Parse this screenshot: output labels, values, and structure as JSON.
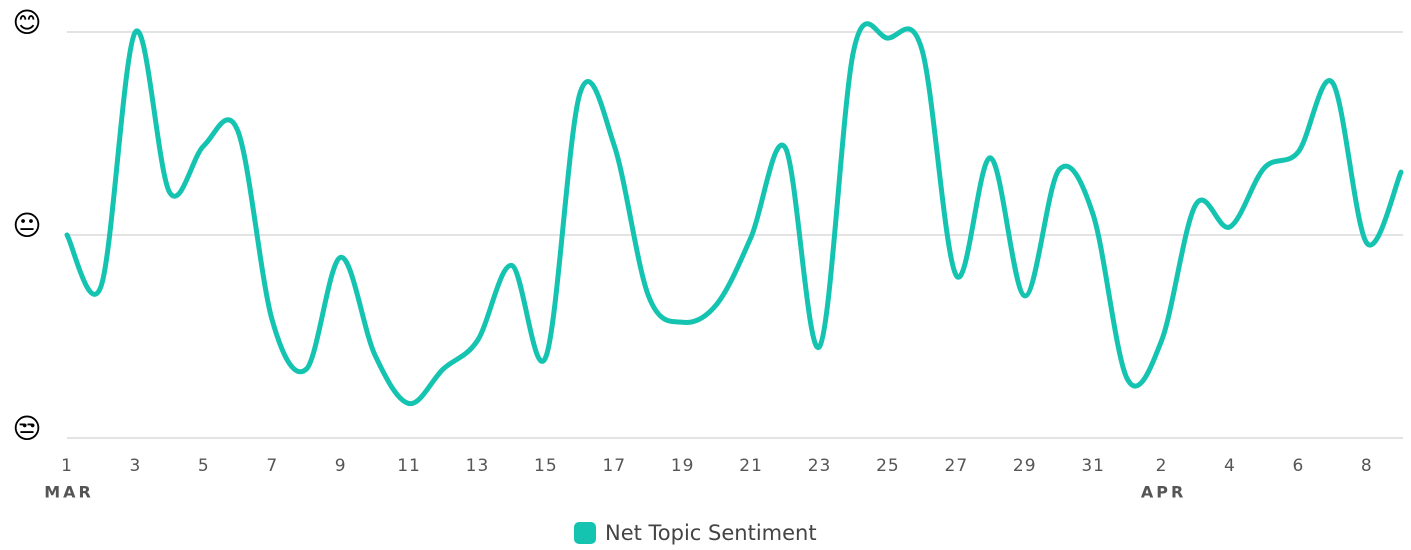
{
  "chart_data": {
    "type": "line",
    "categories": [
      "1",
      null,
      "3",
      null,
      "5",
      null,
      "7",
      null,
      "9",
      null,
      "11",
      null,
      "13",
      null,
      "15",
      null,
      "17",
      null,
      "19",
      null,
      "21",
      null,
      "23",
      null,
      "25",
      null,
      "27",
      null,
      "29",
      null,
      "31",
      null,
      "2",
      null,
      "4",
      null,
      "6",
      null,
      "8",
      null
    ],
    "month_labels": [
      {
        "label": "MAR",
        "index": 0
      },
      {
        "label": "APR",
        "index": 32
      }
    ],
    "series": [
      {
        "name": "Net Topic Sentiment",
        "color": "#14c4b0",
        "values": [
          0,
          -0.25,
          1.0,
          0.21,
          0.44,
          0.51,
          -0.42,
          -0.66,
          -0.11,
          -0.59,
          -0.83,
          -0.66,
          -0.52,
          -0.15,
          -0.6,
          0.7,
          0.44,
          -0.3,
          -0.43,
          -0.34,
          -0.01,
          0.43,
          -0.55,
          0.91,
          0.97,
          0.91,
          -0.2,
          0.38,
          -0.3,
          0.32,
          0.1,
          -0.71,
          -0.52,
          0.15,
          0.04,
          0.33,
          0.41,
          0.75,
          -0.04,
          0.31
        ]
      }
    ],
    "ylim": [
      -1,
      1
    ],
    "yticks": [
      {
        "value": -1,
        "label": "😒"
      },
      {
        "value": 0,
        "label": "😐"
      },
      {
        "value": 1,
        "label": "😊"
      }
    ],
    "grid": true,
    "legend": "bottom"
  }
}
